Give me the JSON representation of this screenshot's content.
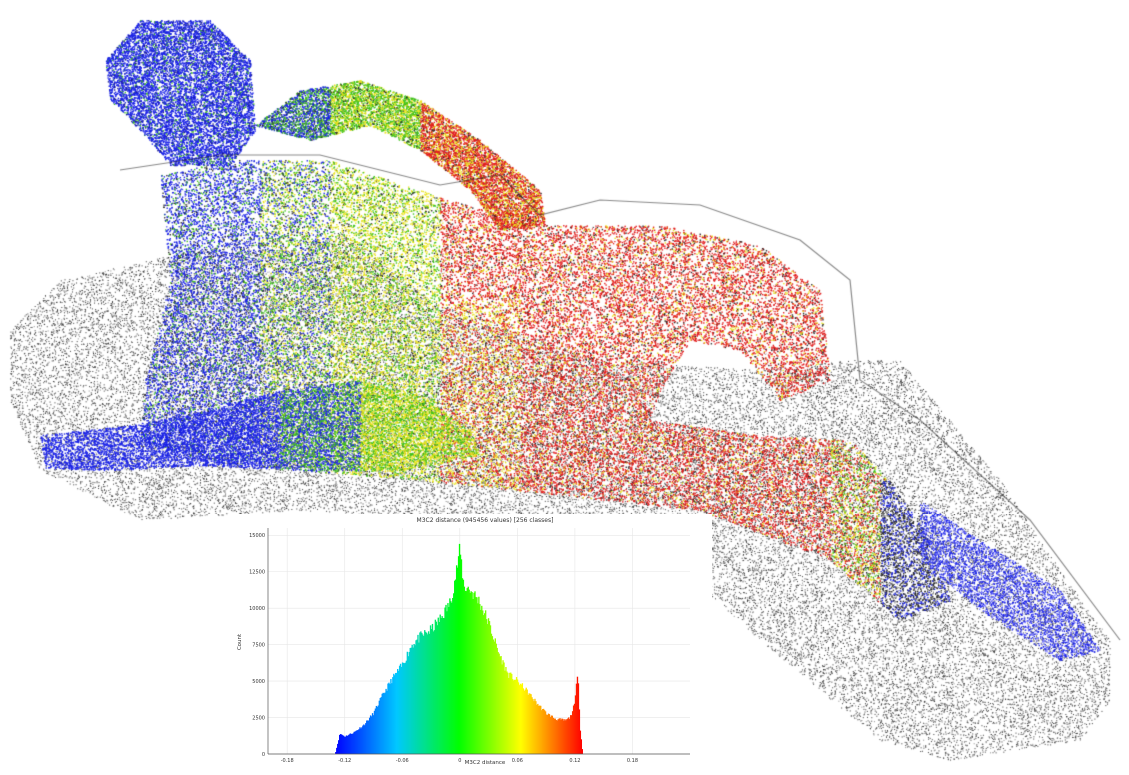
{
  "scene": {
    "subject": "statue-point-cloud",
    "colors": {
      "background": "#ffffff",
      "grey_points": "#2a2a2a",
      "blue": "#1a22e6",
      "green": "#3fc21a",
      "yellow": "#e8e21a",
      "red": "#e11d1d"
    }
  },
  "chart_data": {
    "type": "bar",
    "title": "M3C2 distance (945456 values) [256 classes]",
    "xlabel": "M3C2 distance",
    "ylabel": "Count",
    "xlim": [
      -0.2,
      0.24
    ],
    "ylim": [
      0,
      15500
    ],
    "xticks": [
      "-0.18",
      "-0.12",
      "-0.06",
      "0",
      "0.06",
      "0.12",
      "0.18"
    ],
    "xtick_values": [
      -0.18,
      -0.12,
      -0.06,
      0,
      0.06,
      0.12,
      0.18
    ],
    "yticks": [
      "0",
      "2500",
      "5000",
      "7500",
      "10000",
      "12500",
      "15000"
    ],
    "ytick_values": [
      0,
      2500,
      5000,
      7500,
      10000,
      12500,
      15000
    ],
    "grid": true,
    "colormap": [
      "#0000ff",
      "#00c8ff",
      "#00ff00",
      "#ffff00",
      "#ff0000"
    ],
    "x": [
      -0.13,
      -0.125,
      -0.12,
      -0.11,
      -0.1,
      -0.09,
      -0.08,
      -0.07,
      -0.06,
      -0.05,
      -0.04,
      -0.03,
      -0.02,
      -0.01,
      -0.005,
      0,
      0.004,
      0.01,
      0.02,
      0.03,
      0.04,
      0.05,
      0.06,
      0.07,
      0.08,
      0.09,
      0.1,
      0.11,
      0.115,
      0.12,
      0.123,
      0.125,
      0.128
    ],
    "values": [
      0,
      1400,
      1200,
      1500,
      2000,
      2800,
      4100,
      5200,
      6100,
      7500,
      8100,
      8500,
      9300,
      10400,
      12000,
      14000,
      11500,
      11300,
      10500,
      9000,
      7000,
      5500,
      5000,
      4300,
      3500,
      2800,
      2400,
      2300,
      2500,
      3500,
      6000,
      2000,
      0
    ]
  }
}
